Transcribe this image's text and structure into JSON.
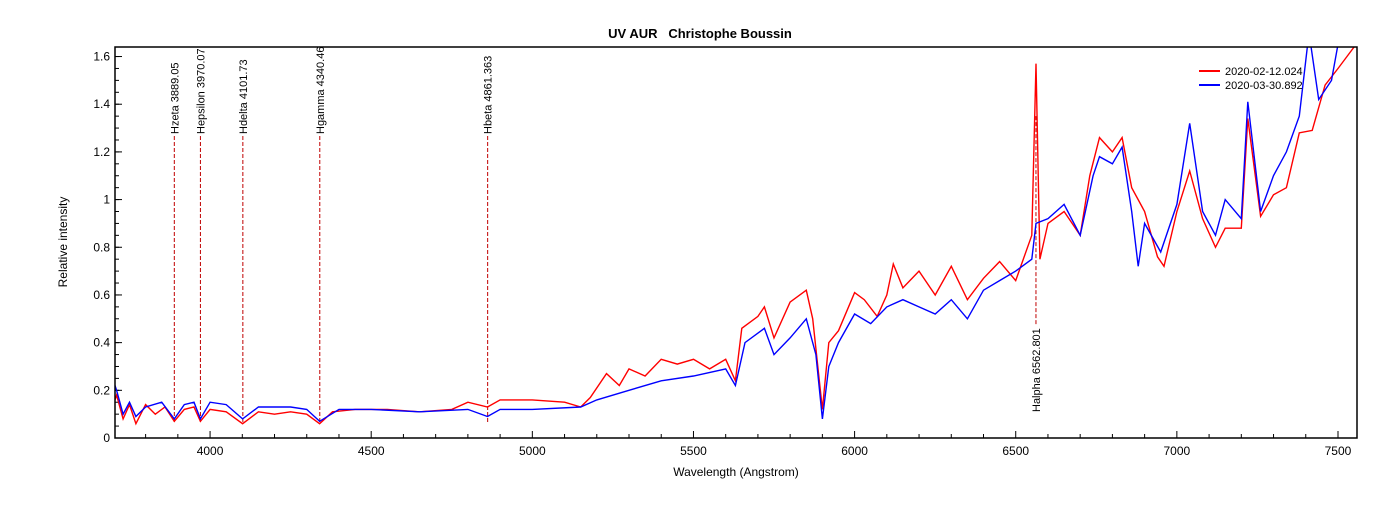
{
  "chart_data": {
    "type": "line",
    "title": "UV AUR   Christophe Boussin",
    "xlabel": "Wavelength (Angstrom)",
    "ylabel": "Relative intensity",
    "xlim": [
      3705,
      7559
    ],
    "ylim": [
      0,
      1.64
    ],
    "xticks": [
      4000,
      4500,
      5000,
      5500,
      6000,
      6500,
      7000,
      7500
    ],
    "yticks": [
      0,
      0.2,
      0.4,
      0.6,
      0.8,
      1,
      1.2,
      1.4,
      1.6
    ],
    "ytick_labels": [
      "0",
      "0.2",
      "0.4",
      "0.6",
      "0.8",
      "1",
      "1.2",
      "1.4",
      "1.6"
    ],
    "grid": false,
    "legend_position": "top-right",
    "lines": [
      {
        "label": "Hzeta 3889.05",
        "x": 3889.05,
        "position": "top"
      },
      {
        "label": "Hepsilon 3970.07",
        "x": 3970.07,
        "position": "top"
      },
      {
        "label": "Hdelta 4101.73",
        "x": 4101.73,
        "position": "top"
      },
      {
        "label": "Hgamma 4340.46",
        "x": 4340.46,
        "position": "top"
      },
      {
        "label": "Hbeta 4861.363",
        "x": 4861.363,
        "position": "top"
      },
      {
        "label": "Halpha 6562.801",
        "x": 6562.801,
        "position": "bottom"
      }
    ],
    "series": [
      {
        "name": "2020-02-12.024",
        "color": "#ff0000",
        "x": [
          3705,
          3710,
          3730,
          3750,
          3770,
          3800,
          3830,
          3860,
          3889,
          3920,
          3950,
          3970,
          4000,
          4050,
          4101,
          4150,
          4200,
          4250,
          4300,
          4340,
          4380,
          4450,
          4550,
          4650,
          4750,
          4800,
          4861,
          4900,
          5000,
          5100,
          5150,
          5180,
          5230,
          5270,
          5300,
          5350,
          5400,
          5450,
          5500,
          5550,
          5600,
          5630,
          5650,
          5700,
          5720,
          5750,
          5800,
          5850,
          5870,
          5900,
          5920,
          5950,
          6000,
          6030,
          6070,
          6100,
          6120,
          6150,
          6200,
          6250,
          6300,
          6350,
          6400,
          6450,
          6500,
          6550,
          6563,
          6575,
          6600,
          6650,
          6700,
          6730,
          6760,
          6800,
          6830,
          6860,
          6900,
          6940,
          6960,
          7000,
          7040,
          7080,
          7120,
          7150,
          7200,
          7220,
          7260,
          7300,
          7340,
          7380,
          7420,
          7460,
          7500,
          7550
        ],
        "y": [
          0.16,
          0.18,
          0.08,
          0.14,
          0.06,
          0.14,
          0.1,
          0.13,
          0.07,
          0.12,
          0.13,
          0.07,
          0.12,
          0.11,
          0.06,
          0.11,
          0.1,
          0.11,
          0.1,
          0.06,
          0.11,
          0.12,
          0.12,
          0.11,
          0.12,
          0.15,
          0.13,
          0.16,
          0.16,
          0.15,
          0.13,
          0.17,
          0.27,
          0.22,
          0.29,
          0.26,
          0.33,
          0.31,
          0.33,
          0.29,
          0.33,
          0.24,
          0.46,
          0.51,
          0.55,
          0.42,
          0.57,
          0.62,
          0.5,
          0.12,
          0.4,
          0.45,
          0.61,
          0.58,
          0.51,
          0.6,
          0.73,
          0.63,
          0.7,
          0.6,
          0.72,
          0.58,
          0.67,
          0.74,
          0.66,
          0.85,
          1.57,
          0.75,
          0.9,
          0.95,
          0.85,
          1.1,
          1.26,
          1.2,
          1.26,
          1.05,
          0.95,
          0.76,
          0.72,
          0.95,
          1.12,
          0.92,
          0.8,
          0.88,
          0.88,
          1.34,
          0.93,
          1.02,
          1.05,
          1.28,
          1.29,
          1.48,
          1.55,
          1.64
        ]
      },
      {
        "name": "2020-03-30.892",
        "color": "#0000ff",
        "x": [
          3705,
          3710,
          3730,
          3750,
          3770,
          3800,
          3850,
          3889,
          3920,
          3950,
          3970,
          4000,
          4050,
          4101,
          4150,
          4250,
          4300,
          4340,
          4400,
          4500,
          4650,
          4800,
          4861,
          4900,
          5000,
          5150,
          5200,
          5300,
          5400,
          5500,
          5600,
          5630,
          5660,
          5720,
          5750,
          5800,
          5850,
          5880,
          5900,
          5920,
          5950,
          6000,
          6050,
          6100,
          6150,
          6200,
          6250,
          6300,
          6350,
          6400,
          6450,
          6500,
          6550,
          6563,
          6600,
          6650,
          6700,
          6740,
          6760,
          6800,
          6830,
          6860,
          6880,
          6900,
          6950,
          7000,
          7040,
          7080,
          7120,
          7150,
          7200,
          7220,
          7260,
          7300,
          7340,
          7380,
          7410,
          7440,
          7480,
          7520
        ],
        "y": [
          0.22,
          0.2,
          0.1,
          0.15,
          0.09,
          0.13,
          0.15,
          0.08,
          0.14,
          0.15,
          0.08,
          0.15,
          0.14,
          0.08,
          0.13,
          0.13,
          0.12,
          0.07,
          0.12,
          0.12,
          0.11,
          0.12,
          0.09,
          0.12,
          0.12,
          0.13,
          0.16,
          0.2,
          0.24,
          0.26,
          0.29,
          0.22,
          0.4,
          0.46,
          0.35,
          0.42,
          0.5,
          0.35,
          0.08,
          0.3,
          0.4,
          0.52,
          0.48,
          0.55,
          0.58,
          0.55,
          0.52,
          0.58,
          0.5,
          0.62,
          0.66,
          0.7,
          0.75,
          0.9,
          0.92,
          0.98,
          0.85,
          1.1,
          1.18,
          1.15,
          1.22,
          0.95,
          0.72,
          0.9,
          0.78,
          0.98,
          1.32,
          0.95,
          0.85,
          1.0,
          0.92,
          1.41,
          0.95,
          1.1,
          1.2,
          1.35,
          1.7,
          1.42,
          1.5,
          1.8
        ]
      }
    ]
  }
}
